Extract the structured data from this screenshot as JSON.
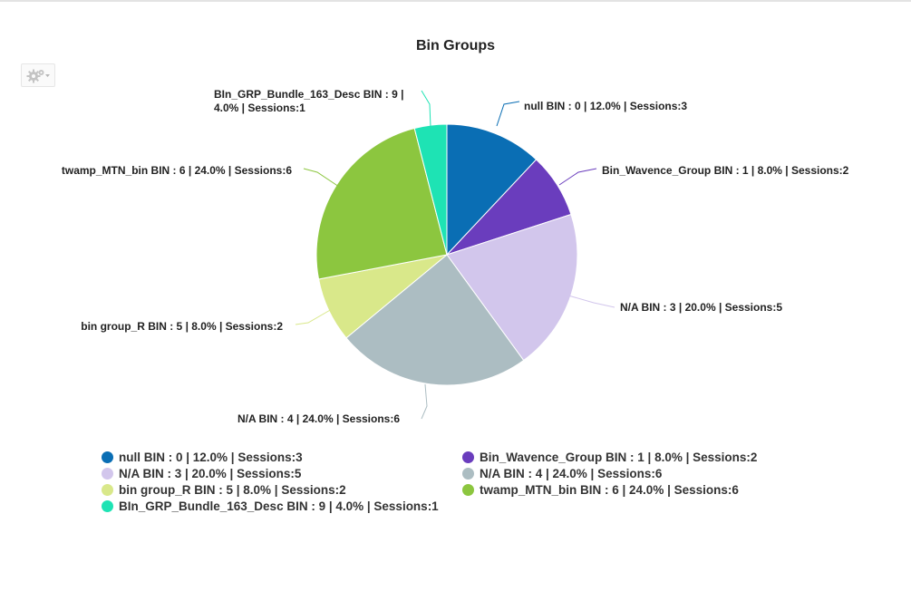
{
  "chart_data": {
    "type": "pie",
    "title": "Bin Groups",
    "slices": [
      {
        "label": "null BIN : 0 | 12.0% | Sessions:3",
        "value": 3,
        "percent": 12.0,
        "color": "#0a6eb4"
      },
      {
        "label": "Bin_Wavence_Group BIN : 1 | 8.0% | Sessions:2",
        "value": 2,
        "percent": 8.0,
        "color": "#6a3dbd"
      },
      {
        "label": "N/A BIN : 3 | 20.0% | Sessions:5",
        "value": 5,
        "percent": 20.0,
        "color": "#d2c6ec"
      },
      {
        "label": "N/A BIN : 4 | 24.0% | Sessions:6",
        "value": 6,
        "percent": 24.0,
        "color": "#acbdc2"
      },
      {
        "label": "bin group_R BIN : 5 | 8.0% | Sessions:2",
        "value": 2,
        "percent": 8.0,
        "color": "#d9e88a"
      },
      {
        "label": "twamp_MTN_bin BIN : 6 | 24.0% | Sessions:6",
        "value": 6,
        "percent": 24.0,
        "color": "#8cc63f"
      },
      {
        "label": "BIn_GRP_Bundle_163_Desc BIN : 9 | 4.0% | Sessions:1",
        "value": 1,
        "percent": 4.0,
        "color": "#1ee3b4"
      }
    ],
    "legend_position": "bottom"
  },
  "icons": {
    "settings": "gear-icon"
  }
}
